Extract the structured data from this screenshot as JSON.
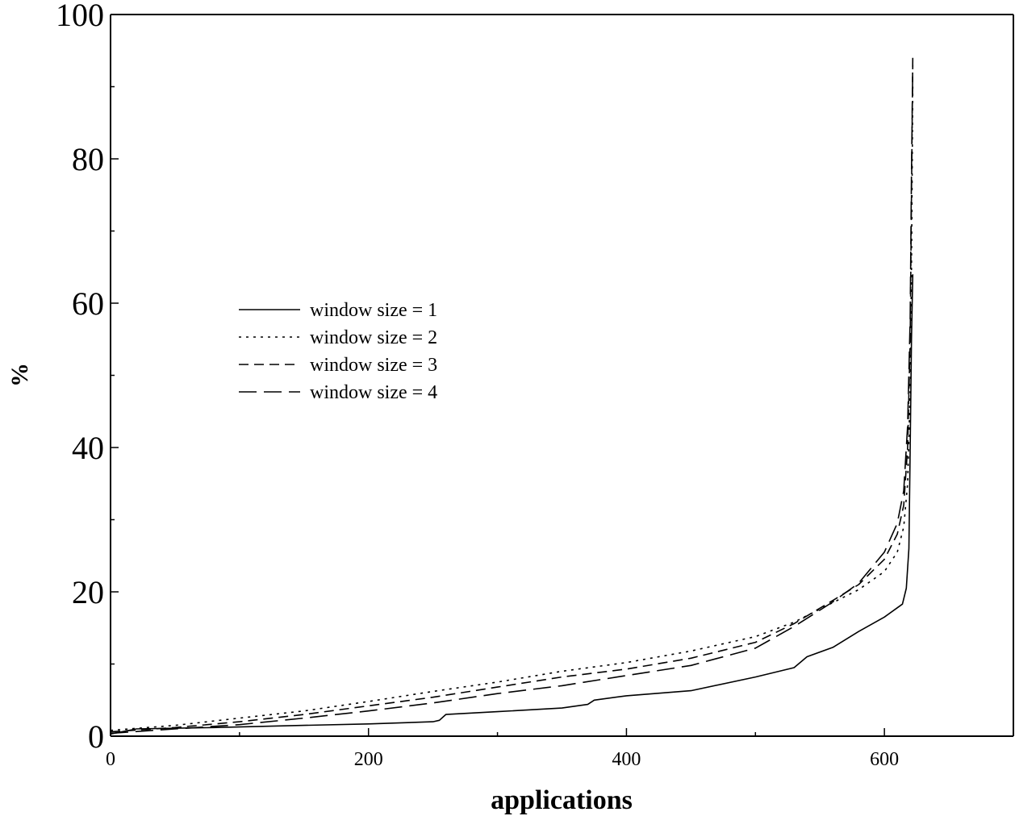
{
  "chart_data": {
    "type": "line",
    "title": "",
    "xlabel": "applications",
    "ylabel": "%",
    "xlim": [
      0,
      700
    ],
    "ylim": [
      0,
      100
    ],
    "xticks": [
      0,
      200,
      400,
      600
    ],
    "yticks": [
      0,
      20,
      40,
      60,
      80,
      100
    ],
    "x_minor_step": 100,
    "y_minor_step": 10,
    "grid": false,
    "legend_position": "center-left",
    "series": [
      {
        "name": "window size = 1",
        "dash": "solid",
        "x": [
          0,
          20,
          80,
          150,
          200,
          250,
          255,
          260,
          300,
          350,
          370,
          375,
          400,
          450,
          500,
          530,
          540,
          560,
          580,
          600,
          614,
          617,
          619,
          620,
          621,
          622
        ],
        "y": [
          0.3,
          1.0,
          1.2,
          1.5,
          1.7,
          2.0,
          2.2,
          3.0,
          3.4,
          3.9,
          4.4,
          5.0,
          5.6,
          6.3,
          8.2,
          9.5,
          11.0,
          12.3,
          14.5,
          16.5,
          18.3,
          20.5,
          26.0,
          40.0,
          55.0,
          64.0
        ]
      },
      {
        "name": "window size = 2",
        "dash": "dotted",
        "x": [
          0,
          50,
          100,
          150,
          200,
          250,
          300,
          350,
          400,
          450,
          500,
          530,
          560,
          580,
          600,
          610,
          615,
          618,
          620,
          621,
          622
        ],
        "y": [
          0.8,
          1.5,
          2.5,
          3.5,
          4.8,
          6.2,
          7.5,
          9.0,
          10.2,
          11.8,
          13.8,
          15.8,
          18.5,
          20.3,
          22.8,
          25.5,
          29.0,
          35.0,
          48.0,
          65.0,
          90.0
        ]
      },
      {
        "name": "window size = 3",
        "dash": "dashed",
        "x": [
          0,
          50,
          100,
          150,
          200,
          250,
          300,
          350,
          400,
          450,
          500,
          530,
          560,
          580,
          600,
          610,
          615,
          618,
          620,
          621,
          622
        ],
        "y": [
          0.6,
          1.2,
          2.0,
          3.0,
          4.2,
          5.4,
          6.8,
          8.2,
          9.3,
          10.8,
          13.0,
          15.6,
          18.8,
          21.0,
          24.5,
          28.0,
          32.0,
          40.0,
          55.0,
          75.0,
          94.0
        ]
      },
      {
        "name": "window size = 4",
        "dash": "long-dashed",
        "x": [
          0,
          50,
          100,
          150,
          200,
          250,
          300,
          350,
          400,
          450,
          500,
          530,
          560,
          580,
          600,
          610,
          615,
          618,
          620,
          621,
          622
        ],
        "y": [
          0.4,
          1.0,
          1.6,
          2.5,
          3.5,
          4.6,
          5.9,
          7.0,
          8.4,
          9.8,
          12.2,
          15.2,
          18.6,
          21.2,
          25.5,
          29.5,
          34.0,
          43.0,
          58.0,
          78.0,
          93.0
        ]
      }
    ]
  }
}
